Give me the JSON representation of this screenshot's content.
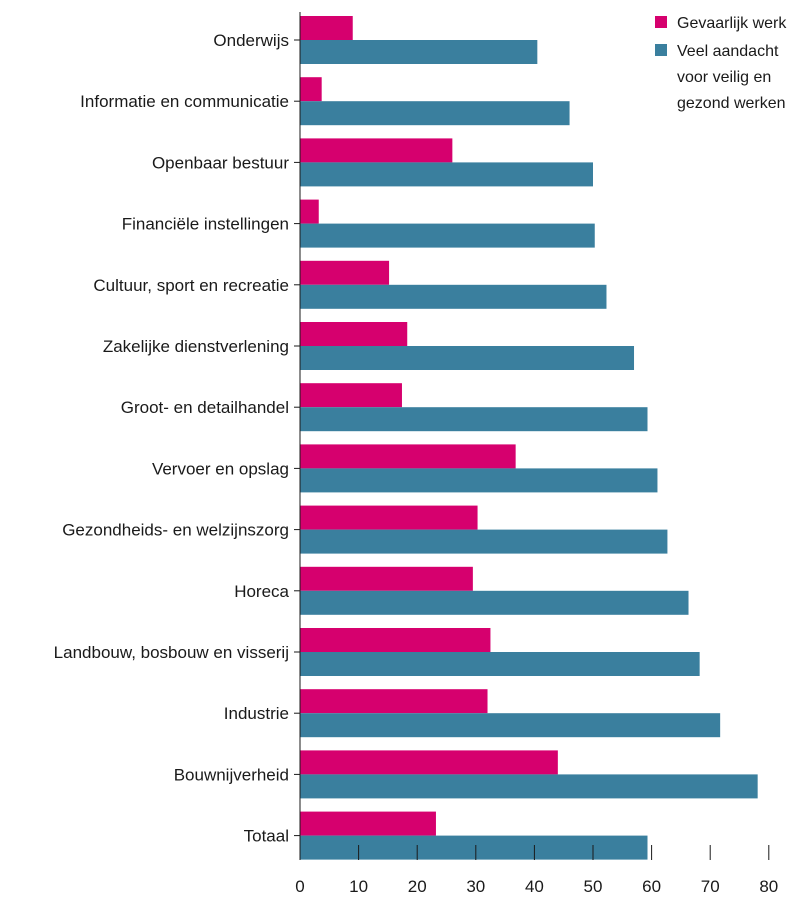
{
  "chart_data": {
    "type": "bar",
    "orientation": "horizontal",
    "categories": [
      "Onderwijs",
      "Informatie en communicatie",
      "Openbaar bestuur",
      "Financiële instellingen",
      "Cultuur, sport en recreatie",
      "Zakelijke dienstverlening",
      "Groot- en detailhandel",
      "Vervoer en opslag",
      "Gezondheids- en welzijnszorg",
      "Horeca",
      "Landbouw, bosbouw en visserij",
      "Industrie",
      "Bouwnijverheid",
      "Totaal"
    ],
    "series": [
      {
        "name": "Gevaarlijk werk",
        "color": "#d6006e",
        "values": [
          9,
          3.7,
          26,
          3.2,
          15.2,
          18.3,
          17.4,
          36.8,
          30.3,
          29.5,
          32.5,
          32,
          44,
          23.2
        ]
      },
      {
        "name": "Veel aandacht voor veilig en gezond werken",
        "color": "#3a7f9e",
        "values": [
          40.5,
          46,
          50,
          50.3,
          52.3,
          57,
          59.3,
          61,
          62.7,
          66.3,
          68.2,
          71.7,
          78.1,
          59.3
        ]
      }
    ],
    "legend": {
      "position": "top-right",
      "entries": [
        {
          "lines": [
            "Gevaarlijk werk"
          ],
          "color": "#d6006e"
        },
        {
          "lines": [
            "Veel aandacht",
            "voor veilig en",
            "gezond werken"
          ],
          "color": "#3a7f9e"
        }
      ]
    },
    "x_ticks": [
      0,
      10,
      20,
      30,
      40,
      50,
      60,
      70,
      80
    ],
    "xlim": [
      0,
      80
    ],
    "title": "",
    "xlabel": "",
    "ylabel": "",
    "grid": false
  }
}
